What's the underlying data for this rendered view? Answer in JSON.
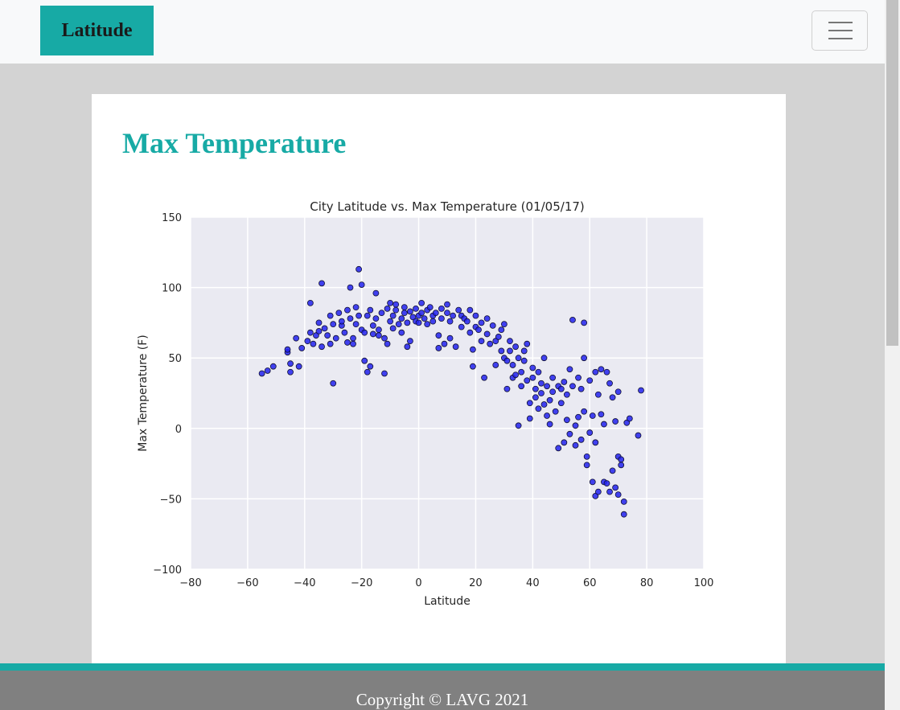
{
  "navbar": {
    "brand": "Latitude",
    "menu_icon": "hamburger-menu-icon"
  },
  "page": {
    "title": "Max Temperature"
  },
  "footer": {
    "copyright": "Copyright © LAVG 2021"
  },
  "colors": {
    "accent": "#17aaa5",
    "marker": "#2222ee",
    "plot_bg": "#eaeaf2"
  },
  "chart_data": {
    "type": "scatter",
    "title": "City Latitude vs. Max Temperature (01/05/17)",
    "xlabel": "Latitude",
    "ylabel": "Max Temperature (F)",
    "xlim": [
      -80,
      100
    ],
    "ylim": [
      -100,
      150
    ],
    "xticks": [
      -80,
      -60,
      -40,
      -20,
      0,
      20,
      40,
      60,
      80,
      100
    ],
    "yticks": [
      -100,
      -50,
      0,
      50,
      100,
      150
    ],
    "xtick_labels": [
      "−80",
      "−60",
      "−40",
      "−20",
      "0",
      "20",
      "40",
      "60",
      "80",
      "100"
    ],
    "ytick_labels": [
      "−100",
      "−50",
      "0",
      "50",
      "100",
      "150"
    ],
    "grid": true,
    "points": [
      [
        -55,
        39
      ],
      [
        -53,
        41
      ],
      [
        -51,
        44
      ],
      [
        -46,
        54
      ],
      [
        -46,
        56
      ],
      [
        -45,
        40
      ],
      [
        -45,
        46
      ],
      [
        -43,
        64
      ],
      [
        -42,
        44
      ],
      [
        -41,
        57
      ],
      [
        -39,
        62
      ],
      [
        -38,
        68
      ],
      [
        -38,
        89
      ],
      [
        -37,
        60
      ],
      [
        -36,
        66
      ],
      [
        -35,
        75
      ],
      [
        -35,
        69
      ],
      [
        -34,
        58
      ],
      [
        -34,
        103
      ],
      [
        -33,
        71
      ],
      [
        -32,
        66
      ],
      [
        -31,
        80
      ],
      [
        -31,
        60
      ],
      [
        -30,
        32
      ],
      [
        -30,
        74
      ],
      [
        -29,
        64
      ],
      [
        -28,
        82
      ],
      [
        -27,
        73
      ],
      [
        -27,
        76
      ],
      [
        -26,
        68
      ],
      [
        -25,
        84
      ],
      [
        -25,
        61
      ],
      [
        -24,
        100
      ],
      [
        -24,
        78
      ],
      [
        -23,
        64
      ],
      [
        -23,
        60
      ],
      [
        -22,
        86
      ],
      [
        -22,
        74
      ],
      [
        -21,
        80
      ],
      [
        -21,
        113
      ],
      [
        -20,
        70
      ],
      [
        -20,
        102
      ],
      [
        -19,
        48
      ],
      [
        -19,
        68
      ],
      [
        -18,
        80
      ],
      [
        -18,
        40
      ],
      [
        -17,
        84
      ],
      [
        -17,
        44
      ],
      [
        -16,
        73
      ],
      [
        -16,
        67
      ],
      [
        -15,
        96
      ],
      [
        -15,
        78
      ],
      [
        -14,
        70
      ],
      [
        -14,
        66
      ],
      [
        -13,
        82
      ],
      [
        -12,
        39
      ],
      [
        -12,
        64
      ],
      [
        -11,
        85
      ],
      [
        -11,
        60
      ],
      [
        -10,
        89
      ],
      [
        -10,
        76
      ],
      [
        -9,
        80
      ],
      [
        -9,
        71
      ],
      [
        -8,
        88
      ],
      [
        -8,
        84
      ],
      [
        -7,
        74
      ],
      [
        -6,
        78
      ],
      [
        -6,
        68
      ],
      [
        -5,
        82
      ],
      [
        -5,
        86
      ],
      [
        -4,
        58
      ],
      [
        -4,
        75
      ],
      [
        -3,
        62
      ],
      [
        -3,
        83
      ],
      [
        -2,
        79
      ],
      [
        -1,
        76
      ],
      [
        -1,
        85
      ],
      [
        0,
        80
      ],
      [
        0,
        75
      ],
      [
        1,
        89
      ],
      [
        1,
        82
      ],
      [
        2,
        78
      ],
      [
        3,
        84
      ],
      [
        3,
        74
      ],
      [
        4,
        86
      ],
      [
        5,
        80
      ],
      [
        5,
        76
      ],
      [
        6,
        82
      ],
      [
        7,
        66
      ],
      [
        7,
        57
      ],
      [
        8,
        85
      ],
      [
        8,
        78
      ],
      [
        9,
        60
      ],
      [
        10,
        82
      ],
      [
        10,
        88
      ],
      [
        11,
        64
      ],
      [
        11,
        76
      ],
      [
        12,
        80
      ],
      [
        13,
        58
      ],
      [
        14,
        84
      ],
      [
        15,
        72
      ],
      [
        15,
        80
      ],
      [
        16,
        78
      ],
      [
        17,
        76
      ],
      [
        18,
        84
      ],
      [
        18,
        68
      ],
      [
        19,
        56
      ],
      [
        19,
        44
      ],
      [
        20,
        80
      ],
      [
        20,
        72
      ],
      [
        21,
        70
      ],
      [
        22,
        75
      ],
      [
        22,
        62
      ],
      [
        23,
        36
      ],
      [
        24,
        67
      ],
      [
        24,
        78
      ],
      [
        25,
        60
      ],
      [
        26,
        73
      ],
      [
        27,
        45
      ],
      [
        27,
        62
      ],
      [
        28,
        65
      ],
      [
        29,
        55
      ],
      [
        29,
        70
      ],
      [
        30,
        74
      ],
      [
        30,
        50
      ],
      [
        31,
        48
      ],
      [
        31,
        28
      ],
      [
        32,
        62
      ],
      [
        32,
        55
      ],
      [
        33,
        45
      ],
      [
        33,
        36
      ],
      [
        34,
        58
      ],
      [
        34,
        38
      ],
      [
        35,
        50
      ],
      [
        35,
        2
      ],
      [
        36,
        40
      ],
      [
        36,
        30
      ],
      [
        37,
        55
      ],
      [
        37,
        48
      ],
      [
        38,
        34
      ],
      [
        38,
        60
      ],
      [
        39,
        18
      ],
      [
        39,
        7
      ],
      [
        40,
        36
      ],
      [
        40,
        43
      ],
      [
        41,
        28
      ],
      [
        41,
        22
      ],
      [
        42,
        40
      ],
      [
        42,
        14
      ],
      [
        43,
        32
      ],
      [
        43,
        25
      ],
      [
        44,
        17
      ],
      [
        44,
        50
      ],
      [
        45,
        9
      ],
      [
        45,
        30
      ],
      [
        46,
        20
      ],
      [
        46,
        3
      ],
      [
        47,
        26
      ],
      [
        47,
        36
      ],
      [
        48,
        12
      ],
      [
        49,
        30
      ],
      [
        49,
        -14
      ],
      [
        50,
        28
      ],
      [
        50,
        18
      ],
      [
        51,
        33
      ],
      [
        51,
        -10
      ],
      [
        52,
        24
      ],
      [
        52,
        6
      ],
      [
        53,
        42
      ],
      [
        53,
        -4
      ],
      [
        54,
        77
      ],
      [
        54,
        30
      ],
      [
        55,
        2
      ],
      [
        55,
        -12
      ],
      [
        56,
        36
      ],
      [
        56,
        8
      ],
      [
        57,
        28
      ],
      [
        57,
        -8
      ],
      [
        58,
        75
      ],
      [
        58,
        50
      ],
      [
        58,
        12
      ],
      [
        59,
        -20
      ],
      [
        59,
        -26
      ],
      [
        60,
        34
      ],
      [
        60,
        -3
      ],
      [
        61,
        9
      ],
      [
        61,
        -38
      ],
      [
        62,
        40
      ],
      [
        62,
        -10
      ],
      [
        62,
        -48
      ],
      [
        63,
        24
      ],
      [
        63,
        -45
      ],
      [
        64,
        42
      ],
      [
        64,
        10
      ],
      [
        65,
        -38
      ],
      [
        65,
        3
      ],
      [
        66,
        40
      ],
      [
        66,
        -39
      ],
      [
        67,
        -45
      ],
      [
        67,
        32
      ],
      [
        68,
        22
      ],
      [
        68,
        -30
      ],
      [
        69,
        -42
      ],
      [
        69,
        5
      ],
      [
        70,
        26
      ],
      [
        70,
        -20
      ],
      [
        70,
        -47
      ],
      [
        71,
        -22
      ],
      [
        71,
        -26
      ],
      [
        72,
        -52
      ],
      [
        72,
        -61
      ],
      [
        73,
        4
      ],
      [
        74,
        7
      ],
      [
        77,
        -5
      ],
      [
        78,
        27
      ]
    ]
  }
}
